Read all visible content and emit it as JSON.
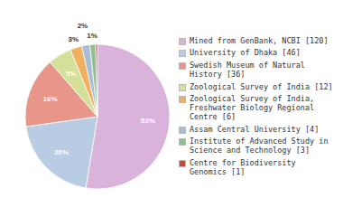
{
  "chart_data": {
    "type": "pie",
    "categories": [
      "Mined from GenBank, NCBI [120]",
      "University of Dhaka [46]",
      "Swedish Museum of Natural\nHistory [36]",
      "Zoological Survey of India [12]",
      "Zoological Survey of India,\nFreshwater Biology Regional\nCentre [6]",
      "Assam Central University [4]",
      "Institute of Advanced Study in\nScience and Technology [3]",
      "Centre for Biodiversity\nGenomics [1]"
    ],
    "values": [
      52.6,
      20.2,
      15.8,
      5.3,
      2.6,
      1.8,
      1.3,
      0.4
    ],
    "value_labels": [
      "53%",
      "20%",
      "16%",
      "5%",
      "3%",
      "2%",
      "1%",
      null
    ],
    "colors": [
      "#d9b3d9",
      "#b8cce4",
      "#e8968a",
      "#d4e09a",
      "#f0b060",
      "#a8bcd4",
      "#90c090",
      "#c44a3a"
    ],
    "legend": "right"
  }
}
